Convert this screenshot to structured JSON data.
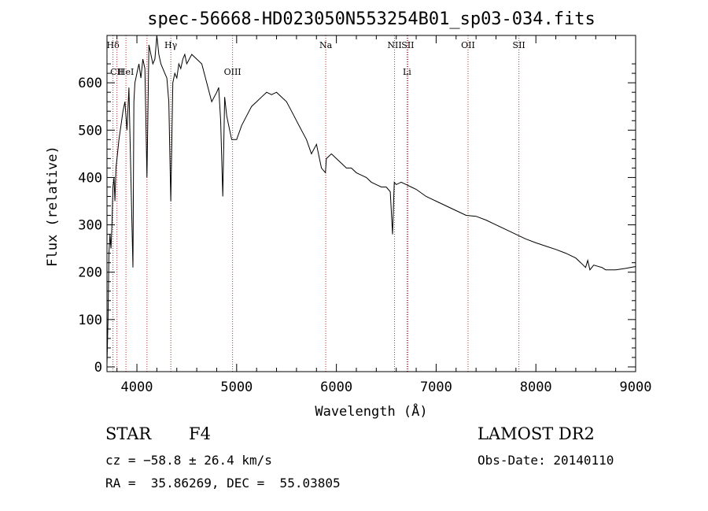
{
  "chart_data": {
    "type": "line",
    "title": "spec-56668-HD023050N553254B01_sp03-034.fits",
    "xlabel": "Wavelength (Å)",
    "ylabel": "Flux (relative)",
    "xlim": [
      3700,
      9000
    ],
    "ylim": [
      -10,
      700
    ],
    "xticks": [
      4000,
      5000,
      6000,
      7000,
      8000,
      9000
    ],
    "yticks": [
      0,
      100,
      200,
      300,
      400,
      500,
      600
    ],
    "grid": false,
    "series": [
      {
        "x": [
          3700,
          3710,
          3720,
          3730,
          3740,
          3750,
          3760,
          3770,
          3780,
          3790,
          3800,
          3820,
          3840,
          3860,
          3880,
          3900,
          3920,
          3940,
          3960,
          3970,
          3980,
          4000,
          4020,
          4040,
          4060,
          4080,
          4101,
          4120,
          4140,
          4160,
          4180,
          4200,
          4220,
          4240,
          4260,
          4280,
          4300,
          4320,
          4340,
          4360,
          4380,
          4400,
          4420,
          4440,
          4460,
          4480,
          4500,
          4550,
          4600,
          4650,
          4700,
          4750,
          4800,
          4820,
          4840,
          4861,
          4880,
          4900,
          4920,
          4950,
          5000,
          5050,
          5100,
          5150,
          5200,
          5250,
          5300,
          5350,
          5400,
          5450,
          5500,
          5550,
          5600,
          5650,
          5700,
          5750,
          5800,
          5850,
          5890,
          5900,
          5950,
          6000,
          6050,
          6100,
          6150,
          6200,
          6250,
          6300,
          6350,
          6400,
          6450,
          6500,
          6540,
          6563,
          6580,
          6600,
          6650,
          6700,
          6750,
          6800,
          6900,
          7000,
          7100,
          7200,
          7300,
          7400,
          7500,
          7600,
          7700,
          7800,
          7900,
          8000,
          8100,
          8200,
          8300,
          8400,
          8450,
          8498,
          8520,
          8542,
          8580,
          8662,
          8700,
          8800,
          8900,
          9000
        ],
        "y": [
          5,
          100,
          240,
          280,
          250,
          300,
          380,
          400,
          350,
          420,
          440,
          480,
          510,
          540,
          560,
          500,
          590,
          400,
          210,
          560,
          600,
          620,
          640,
          610,
          650,
          630,
          400,
          680,
          660,
          640,
          650,
          700,
          660,
          640,
          630,
          620,
          610,
          560,
          350,
          600,
          620,
          610,
          640,
          630,
          650,
          660,
          640,
          660,
          650,
          640,
          600,
          560,
          580,
          590,
          520,
          360,
          570,
          530,
          510,
          480,
          480,
          510,
          530,
          550,
          560,
          570,
          580,
          575,
          580,
          570,
          560,
          540,
          520,
          500,
          480,
          450,
          470,
          420,
          410,
          440,
          450,
          440,
          430,
          420,
          420,
          410,
          405,
          400,
          390,
          385,
          380,
          380,
          370,
          280,
          390,
          385,
          390,
          385,
          380,
          375,
          360,
          350,
          340,
          330,
          320,
          318,
          310,
          300,
          290,
          280,
          270,
          262,
          255,
          248,
          240,
          230,
          220,
          210,
          225,
          205,
          215,
          210,
          205,
          205,
          208,
          212
        ]
      }
    ],
    "line_markers": [
      {
        "label": "Hδ",
        "x": 3760,
        "row": "upper"
      },
      {
        "label": "CII",
        "x": 3800,
        "row": "lower"
      },
      {
        "label": "HeI",
        "x": 3890,
        "row": "lower"
      },
      {
        "label": "",
        "x": 4101,
        "row": "none"
      },
      {
        "label": "Hγ",
        "x": 4340,
        "row": "upper"
      },
      {
        "label": "OIII",
        "x": 4959,
        "row": "lower"
      },
      {
        "label": "Na",
        "x": 5893,
        "row": "upper"
      },
      {
        "label": "NII",
        "x": 6583,
        "row": "upper"
      },
      {
        "label": "SII",
        "x": 6716,
        "row": "upper"
      },
      {
        "label": "Li",
        "x": 6708,
        "row": "lower"
      },
      {
        "label": "OII",
        "x": 7320,
        "row": "upper"
      },
      {
        "label": "SII",
        "x": 7830,
        "row": "upper"
      }
    ]
  },
  "info": {
    "object_class": "STAR",
    "subclass": "F4",
    "survey": "LAMOST DR2",
    "cz": "cz = −58.8 ± 26.4 km/s",
    "obs_date": "Obs-Date: 20140110",
    "coords": "RA =  35.86269, DEC =  55.03805"
  }
}
